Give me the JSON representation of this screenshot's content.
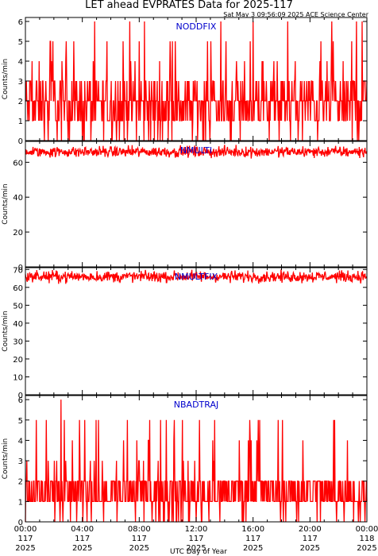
{
  "header": {
    "title": "LET ahead EVPRATES Data for 2025-117",
    "subtitle": "Sat May  3 09:56:09 2025 ACE Science Center"
  },
  "colors": {
    "series": "#ff0000",
    "panel_title": "#0000cc",
    "axes": "#000000"
  },
  "chart_data": [
    {
      "type": "line",
      "title": "NODDFIX",
      "ylabel": "Counts/min",
      "ylim": [
        0,
        6.2
      ],
      "yticks": [
        0,
        1,
        2,
        3,
        4,
        5,
        6
      ],
      "xlim": [
        0,
        1440
      ],
      "profile": {
        "base": 1.8,
        "spread": 1.2,
        "max": 6,
        "min": 0,
        "spikes": [
          [
            440,
            6
          ],
          [
            960,
            6
          ],
          [
            1395,
            6
          ],
          [
            1420,
            6
          ]
        ]
      }
    },
    {
      "type": "line",
      "title": "NMULTI",
      "ylabel": "Counts/min",
      "ylim": [
        0,
        72
      ],
      "yticks": [
        0,
        20,
        40,
        60
      ],
      "xlim": [
        0,
        1440
      ],
      "profile": {
        "base": 66,
        "spread": 2.2,
        "max": 70,
        "min": 62,
        "spikes": []
      }
    },
    {
      "type": "line",
      "title": "NMULTFIX",
      "ylabel": "Counts/min",
      "ylim": [
        0,
        71
      ],
      "yticks": [
        0,
        10,
        20,
        30,
        40,
        50,
        60,
        70
      ],
      "xlim": [
        0,
        1440
      ],
      "profile": {
        "base": 66,
        "spread": 2.2,
        "max": 70,
        "min": 62,
        "spikes": []
      }
    },
    {
      "type": "line",
      "title": "NBADTRAJ",
      "ylabel": "Counts/min",
      "ylim": [
        0,
        6.2
      ],
      "yticks": [
        0,
        1,
        2,
        3,
        4,
        5,
        6
      ],
      "xlim": [
        0,
        1440
      ],
      "profile": {
        "base": 1.4,
        "spread": 0.9,
        "max": 6,
        "min": 0,
        "spikes": [
          [
            150,
            6
          ],
          [
            45,
            5
          ],
          [
            250,
            5
          ],
          [
            430,
            5
          ],
          [
            790,
            4
          ]
        ]
      }
    }
  ],
  "x_axis": {
    "label": "UTC Day of Year",
    "ticks": [
      {
        "minute": 0,
        "time": "00:00",
        "doy": "117",
        "year": "2025"
      },
      {
        "minute": 240,
        "time": "04:00",
        "doy": "117",
        "year": "2025"
      },
      {
        "minute": 480,
        "time": "08:00",
        "doy": "117",
        "year": "2025"
      },
      {
        "minute": 720,
        "time": "12:00",
        "doy": "117",
        "year": "2025"
      },
      {
        "minute": 960,
        "time": "16:00",
        "doy": "117",
        "year": "2025"
      },
      {
        "minute": 1200,
        "time": "20:00",
        "doy": "117",
        "year": "2025"
      },
      {
        "minute": 1440,
        "time": "00:00",
        "doy": "118",
        "year": "2025"
      }
    ]
  }
}
